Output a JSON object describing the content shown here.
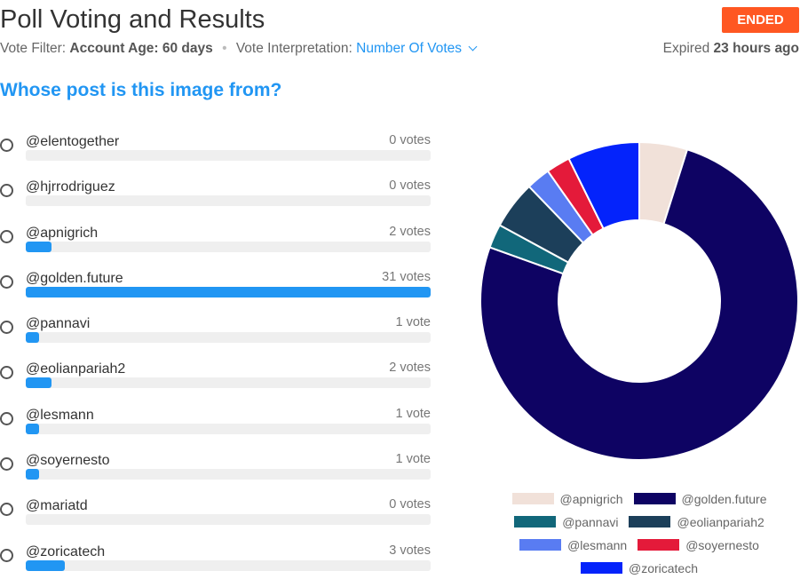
{
  "header": {
    "title": "Poll Voting and Results",
    "status": "ENDED",
    "vote_filter_label": "Vote Filter:",
    "vote_filter_value": "Account Age: 60 days",
    "interpretation_label": "Vote Interpretation:",
    "interpretation_value": "Number Of Votes",
    "expired_label": "Expired",
    "expired_value": "23 hours ago"
  },
  "question": "Whose post is this image from?",
  "options": [
    {
      "name": "@elentogether",
      "votes_label": "0 votes",
      "votes": 0
    },
    {
      "name": "@hjrrodriguez",
      "votes_label": "0 votes",
      "votes": 0
    },
    {
      "name": "@apnigrich",
      "votes_label": "2 votes",
      "votes": 2
    },
    {
      "name": "@golden.future",
      "votes_label": "31 votes",
      "votes": 31
    },
    {
      "name": "@pannavi",
      "votes_label": "1 vote",
      "votes": 1
    },
    {
      "name": "@eolianpariah2",
      "votes_label": "2 votes",
      "votes": 2
    },
    {
      "name": "@lesmann",
      "votes_label": "1 vote",
      "votes": 1
    },
    {
      "name": "@soyernesto",
      "votes_label": "1 vote",
      "votes": 1
    },
    {
      "name": "@mariatd",
      "votes_label": "0 votes",
      "votes": 0
    },
    {
      "name": "@zoricatech",
      "votes_label": "3 votes",
      "votes": 3
    }
  ],
  "colors": {
    "accent": "#2196f3",
    "ended_badge": "#ff5722"
  },
  "chart_data": {
    "type": "pie",
    "donut": true,
    "categories": [
      "@apnigrich",
      "@golden.future",
      "@pannavi",
      "@eolianpariah2",
      "@lesmann",
      "@soyernesto",
      "@zoricatech"
    ],
    "values": [
      2,
      31,
      1,
      2,
      1,
      1,
      3
    ],
    "colors": [
      "#f1e1d9",
      "#0e0363",
      "#11677a",
      "#1c3f5a",
      "#597cf2",
      "#e41a3a",
      "#0423fb"
    ],
    "legend_position": "bottom"
  }
}
